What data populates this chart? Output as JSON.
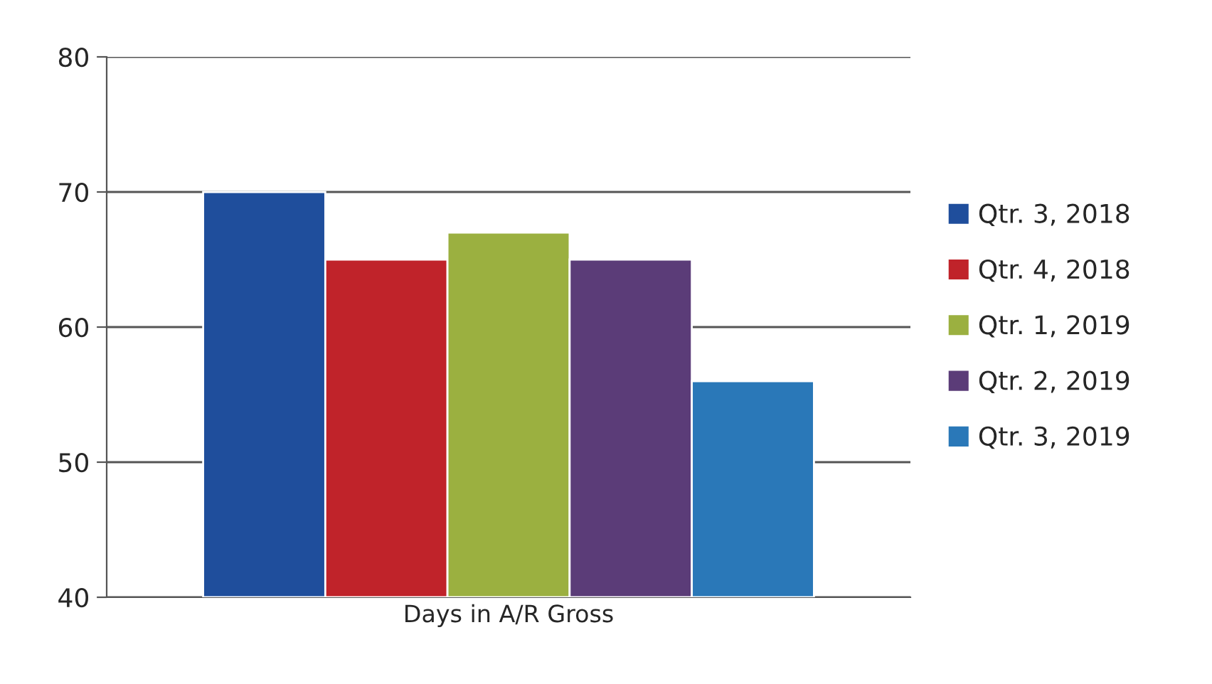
{
  "chart_data": {
    "type": "bar",
    "categories": [
      "Days in A/R Gross"
    ],
    "series": [
      {
        "name": "Qtr. 3, 2018",
        "color": "#1f4e9c",
        "values": [
          70
        ]
      },
      {
        "name": "Qtr. 4, 2018",
        "color": "#c0232a",
        "values": [
          65
        ]
      },
      {
        "name": "Qtr. 1, 2019",
        "color": "#9bb040",
        "values": [
          67
        ]
      },
      {
        "name": "Qtr. 2, 2019",
        "color": "#5b3c78",
        "values": [
          65
        ]
      },
      {
        "name": "Qtr. 3, 2019",
        "color": "#2a78b8",
        "values": [
          56
        ]
      }
    ],
    "ylim": [
      40,
      80
    ],
    "yticks": [
      40,
      50,
      60,
      70,
      80
    ],
    "grid": "y",
    "legend": "right"
  }
}
